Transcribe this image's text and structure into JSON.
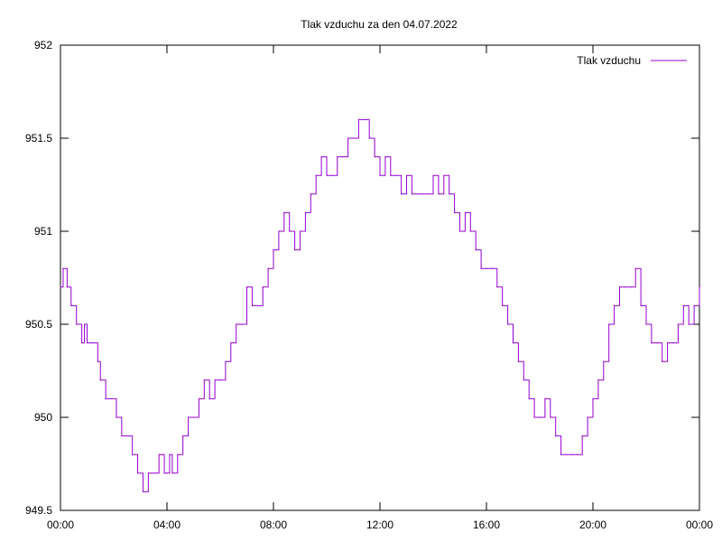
{
  "chart_data": {
    "type": "line",
    "title": "Tlak vzduchu za den 04.07.2022",
    "xlabel": "",
    "ylabel": "",
    "x_unit": "hours",
    "xlim": [
      0,
      24
    ],
    "ylim": [
      949.5,
      952
    ],
    "grid": false,
    "legend_position": "top-right",
    "x_ticks": [
      {
        "value": 0,
        "label": "00:00"
      },
      {
        "value": 4,
        "label": "04:00"
      },
      {
        "value": 8,
        "label": "08:00"
      },
      {
        "value": 12,
        "label": "12:00"
      },
      {
        "value": 16,
        "label": "16:00"
      },
      {
        "value": 20,
        "label": "20:00"
      },
      {
        "value": 24,
        "label": "00:00"
      }
    ],
    "y_ticks": [
      {
        "value": 949.5,
        "label": "949.5"
      },
      {
        "value": 950,
        "label": "950"
      },
      {
        "value": 950.5,
        "label": "950.5"
      },
      {
        "value": 951,
        "label": "951"
      },
      {
        "value": 951.5,
        "label": "951.5"
      },
      {
        "value": 952,
        "label": "952"
      }
    ],
    "series": [
      {
        "name": "Tlak vzduchu",
        "color": "#9400d3",
        "x": [
          0.0,
          0.1,
          0.25,
          0.4,
          0.6,
          0.8,
          0.9,
          1.0,
          1.1,
          1.2,
          1.4,
          1.5,
          1.7,
          1.9,
          2.1,
          2.3,
          2.5,
          2.7,
          2.9,
          3.1,
          3.3,
          3.5,
          3.6,
          3.7,
          3.8,
          3.9,
          4.0,
          4.1,
          4.2,
          4.4,
          4.6,
          4.8,
          5.0,
          5.2,
          5.4,
          5.6,
          5.8,
          6.0,
          6.2,
          6.4,
          6.6,
          6.8,
          7.0,
          7.2,
          7.4,
          7.6,
          7.8,
          8.0,
          8.2,
          8.4,
          8.6,
          8.8,
          9.0,
          9.2,
          9.4,
          9.6,
          9.8,
          10.0,
          10.2,
          10.4,
          10.6,
          10.8,
          11.0,
          11.2,
          11.4,
          11.5,
          11.6,
          11.8,
          12.0,
          12.2,
          12.4,
          12.6,
          12.8,
          13.0,
          13.2,
          13.4,
          13.6,
          13.8,
          14.0,
          14.2,
          14.4,
          14.6,
          14.8,
          15.0,
          15.2,
          15.4,
          15.6,
          15.8,
          16.0,
          16.2,
          16.4,
          16.6,
          16.8,
          17.0,
          17.2,
          17.4,
          17.6,
          17.8,
          18.0,
          18.2,
          18.4,
          18.6,
          18.8,
          19.0,
          19.2,
          19.4,
          19.6,
          19.8,
          20.0,
          20.2,
          20.4,
          20.6,
          20.8,
          21.0,
          21.2,
          21.4,
          21.6,
          21.8,
          22.0,
          22.2,
          22.4,
          22.6,
          22.8,
          23.0,
          23.2,
          23.4,
          23.6,
          23.8,
          24.0
        ],
        "y": [
          950.7,
          950.8,
          950.7,
          950.6,
          950.5,
          950.4,
          950.5,
          950.4,
          950.4,
          950.4,
          950.3,
          950.2,
          950.1,
          950.1,
          950.0,
          949.9,
          949.9,
          949.8,
          949.7,
          949.6,
          949.7,
          949.7,
          949.7,
          949.8,
          949.8,
          949.7,
          949.7,
          949.8,
          949.7,
          949.8,
          949.9,
          950.0,
          950.0,
          950.1,
          950.2,
          950.1,
          950.2,
          950.2,
          950.3,
          950.4,
          950.5,
          950.5,
          950.7,
          950.6,
          950.6,
          950.7,
          950.8,
          950.9,
          951.0,
          951.1,
          951.0,
          950.9,
          951.0,
          951.1,
          951.2,
          951.3,
          951.4,
          951.3,
          951.3,
          951.4,
          951.4,
          951.5,
          951.5,
          951.6,
          951.6,
          951.6,
          951.5,
          951.4,
          951.3,
          951.4,
          951.3,
          951.3,
          951.2,
          951.3,
          951.2,
          951.2,
          951.2,
          951.2,
          951.3,
          951.2,
          951.3,
          951.2,
          951.1,
          951.0,
          951.1,
          951.0,
          950.9,
          950.8,
          950.8,
          950.8,
          950.7,
          950.6,
          950.5,
          950.4,
          950.3,
          950.2,
          950.1,
          950.0,
          950.0,
          950.1,
          950.0,
          949.9,
          949.8,
          949.8,
          949.8,
          949.8,
          949.9,
          950.0,
          950.1,
          950.2,
          950.3,
          950.5,
          950.6,
          950.7,
          950.7,
          950.7,
          950.8,
          950.6,
          950.5,
          950.4,
          950.4,
          950.3,
          950.4,
          950.4,
          950.5,
          950.6,
          950.5,
          950.6,
          950.7
        ]
      }
    ]
  }
}
